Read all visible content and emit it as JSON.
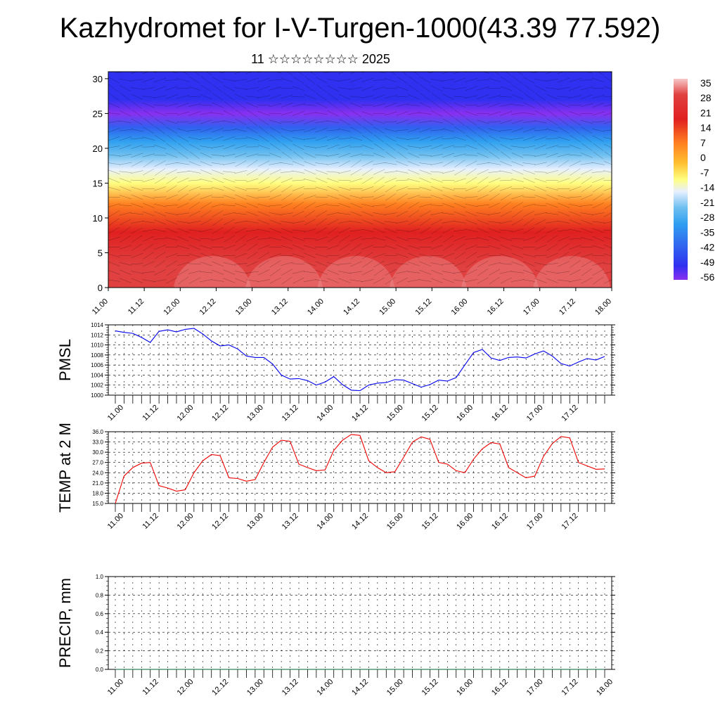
{
  "header": {
    "title": "Kazhydromet for I-V-Turgen-1000(43.39 77.592)",
    "subtitle": "11 ☆☆☆☆☆☆☆☆ 2025"
  },
  "chart_data": [
    {
      "id": "cross-section",
      "type": "heatmap",
      "xticks": [
        "11.00",
        "11.12",
        "12.00",
        "12.12",
        "13.00",
        "13.12",
        "14.00",
        "14.12",
        "15.00",
        "15.12",
        "16.00",
        "16.12",
        "17.00",
        "17.12",
        "18.00"
      ],
      "yticks": [
        "0",
        "5",
        "10",
        "15",
        "20",
        "25",
        "30"
      ],
      "ylim": [
        0,
        31
      ],
      "levels": [
        {
          "z": 0,
          "t": 26
        },
        {
          "z": 3,
          "t": 24
        },
        {
          "z": 8,
          "t": 18
        },
        {
          "z": 12,
          "t": 7
        },
        {
          "z": 15,
          "t": -9
        },
        {
          "z": 17,
          "t": -18
        },
        {
          "z": 19,
          "t": -28
        },
        {
          "z": 21,
          "t": -36
        },
        {
          "z": 23,
          "t": -45
        },
        {
          "z": 25,
          "t": -56
        },
        {
          "z": 27,
          "t": -50
        },
        {
          "z": 31,
          "t": -54
        }
      ],
      "colorbar_labels": [
        "35",
        "28",
        "21",
        "14",
        "7",
        "0",
        "-7",
        "-14",
        "-21",
        "-28",
        "-35",
        "-42",
        "-49",
        "-56"
      ],
      "colors": {
        "hot": "#e02020",
        "warm": "#ffb020",
        "neutral": "#ffffb0",
        "cool": "#40a8f0",
        "cold": "#2020f0",
        "coldest": "#8a30f0"
      }
    },
    {
      "id": "pmsl",
      "type": "line",
      "ylabel": "PMSL",
      "ylim": [
        1000,
        1014
      ],
      "yticks": [
        "1000",
        "1002",
        "1004",
        "1006",
        "1008",
        "1010",
        "1012",
        "1014"
      ],
      "xticks": [
        "11.00",
        "11.12",
        "12.00",
        "12.12",
        "13.00",
        "13.12",
        "14.00",
        "14.12",
        "15.00",
        "15.12",
        "16.00",
        "16.12",
        "17.00",
        "17.12",
        "18.00"
      ],
      "color": "#0000ee",
      "values": [
        1012.8,
        1012.5,
        1012.3,
        1011.5,
        1010.5,
        1012.7,
        1013.0,
        1012.6,
        1013.1,
        1013.3,
        1012.2,
        1010.8,
        1009.8,
        1010.0,
        1009.2,
        1007.8,
        1007.5,
        1007.5,
        1006.2,
        1004.0,
        1003.2,
        1003.3,
        1002.9,
        1002.0,
        1002.6,
        1003.7,
        1002.1,
        1001.0,
        1000.9,
        1002.0,
        1002.4,
        1002.5,
        1003.1,
        1003.0,
        1002.3,
        1001.6,
        1002.1,
        1003.0,
        1002.8,
        1003.5,
        1006.0,
        1008.5,
        1009.1,
        1007.4,
        1006.9,
        1007.5,
        1007.6,
        1007.4,
        1008.2,
        1008.8,
        1007.8,
        1006.3,
        1005.8,
        1006.6,
        1007.3,
        1007.0,
        1007.7
      ]
    },
    {
      "id": "temp",
      "type": "line",
      "ylabel": "TEMP at 2 M",
      "ylim": [
        15,
        36
      ],
      "yticks": [
        "15.0",
        "18.0",
        "21.0",
        "24.0",
        "27.0",
        "30.0",
        "33.0",
        "36.0"
      ],
      "xticks": [
        "11.00",
        "11.12",
        "12.00",
        "12.12",
        "13.00",
        "13.12",
        "14.00",
        "14.12",
        "15.00",
        "15.12",
        "16.00",
        "16.12",
        "17.00",
        "17.12",
        "18.00"
      ],
      "color": "#ee0000",
      "values": [
        15.0,
        23.0,
        25.5,
        26.8,
        27.0,
        20.2,
        19.5,
        18.6,
        19.0,
        24.0,
        27.5,
        29.3,
        29.0,
        22.5,
        22.3,
        21.5,
        22.0,
        27.0,
        31.5,
        33.5,
        33.2,
        26.5,
        25.5,
        24.6,
        24.8,
        30.5,
        33.5,
        35.2,
        34.9,
        27.5,
        25.5,
        24.0,
        24.3,
        28.5,
        33.0,
        34.5,
        33.8,
        27.0,
        26.5,
        24.6,
        24.0,
        28.0,
        31.0,
        32.8,
        32.4,
        25.5,
        24.0,
        22.5,
        23.0,
        28.8,
        32.5,
        34.6,
        34.2,
        27.0,
        26.0,
        25.0,
        25.1
      ]
    },
    {
      "id": "precip",
      "type": "line",
      "ylabel": "PRECIP, mm",
      "ylim": [
        0,
        1
      ],
      "yticks": [
        "0.0",
        "0.2",
        "0.4",
        "0.6",
        "0.8",
        "1.0"
      ],
      "xticks": [
        "11.00",
        "11.12",
        "12.00",
        "12.12",
        "13.00",
        "13.12",
        "14.00",
        "14.12",
        "15.00",
        "15.12",
        "16.00",
        "16.12",
        "17.00",
        "17.12",
        "18.00"
      ],
      "color": "#006633",
      "values": [
        0,
        0
      ]
    }
  ]
}
